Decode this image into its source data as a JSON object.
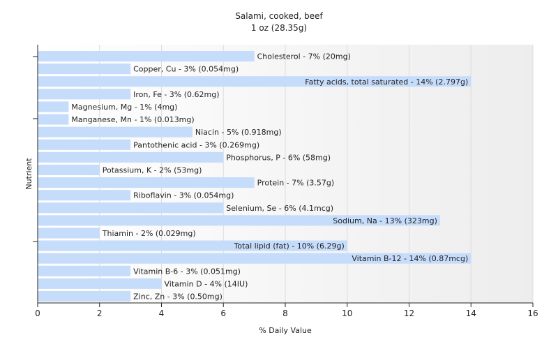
{
  "chart_data": {
    "type": "bar",
    "orientation": "horizontal",
    "title": "Salami, cooked, beef",
    "subtitle": "1 oz (28.35g)",
    "xlabel": "% Daily Value",
    "ylabel": "Nutrient",
    "xlim": [
      0,
      16
    ],
    "xticks": [
      0,
      2,
      4,
      6,
      8,
      10,
      12,
      14,
      16
    ],
    "grid": true,
    "bar_color": "#c6dcfb",
    "categories": [
      "Cholesterol",
      "Copper, Cu",
      "Fatty acids, total saturated",
      "Iron, Fe",
      "Magnesium, Mg",
      "Manganese, Mn",
      "Niacin",
      "Pantothenic acid",
      "Phosphorus, P",
      "Potassium, K",
      "Protein",
      "Riboflavin",
      "Selenium, Se",
      "Sodium, Na",
      "Thiamin",
      "Total lipid (fat)",
      "Vitamin B-12",
      "Vitamin B-6",
      "Vitamin D",
      "Zinc, Zn"
    ],
    "values": [
      7,
      3,
      14,
      3,
      1,
      1,
      5,
      3,
      6,
      2,
      7,
      3,
      6,
      13,
      2,
      10,
      14,
      3,
      4,
      3
    ],
    "labels": [
      "Cholesterol - 7% (20mg)",
      "Copper, Cu - 3% (0.054mg)",
      "Fatty acids, total saturated - 14% (2.797g)",
      "Iron, Fe - 3% (0.62mg)",
      "Magnesium, Mg - 1% (4mg)",
      "Manganese, Mn - 1% (0.013mg)",
      "Niacin - 5% (0.918mg)",
      "Pantothenic acid - 3% (0.269mg)",
      "Phosphorus, P - 6% (58mg)",
      "Potassium, K - 2% (53mg)",
      "Protein - 7% (3.57g)",
      "Riboflavin - 3% (0.054mg)",
      "Selenium, Se - 6% (4.1mcg)",
      "Sodium, Na - 13% (323mg)",
      "Thiamin - 2% (0.029mg)",
      "Total lipid (fat) - 10% (6.29g)",
      "Vitamin B-12 - 14% (0.87mcg)",
      "Vitamin B-6 - 3% (0.051mg)",
      "Vitamin D - 4% (14IU)",
      "Zinc, Zn - 3% (0.50mg)"
    ],
    "inside_label_threshold": 10
  }
}
